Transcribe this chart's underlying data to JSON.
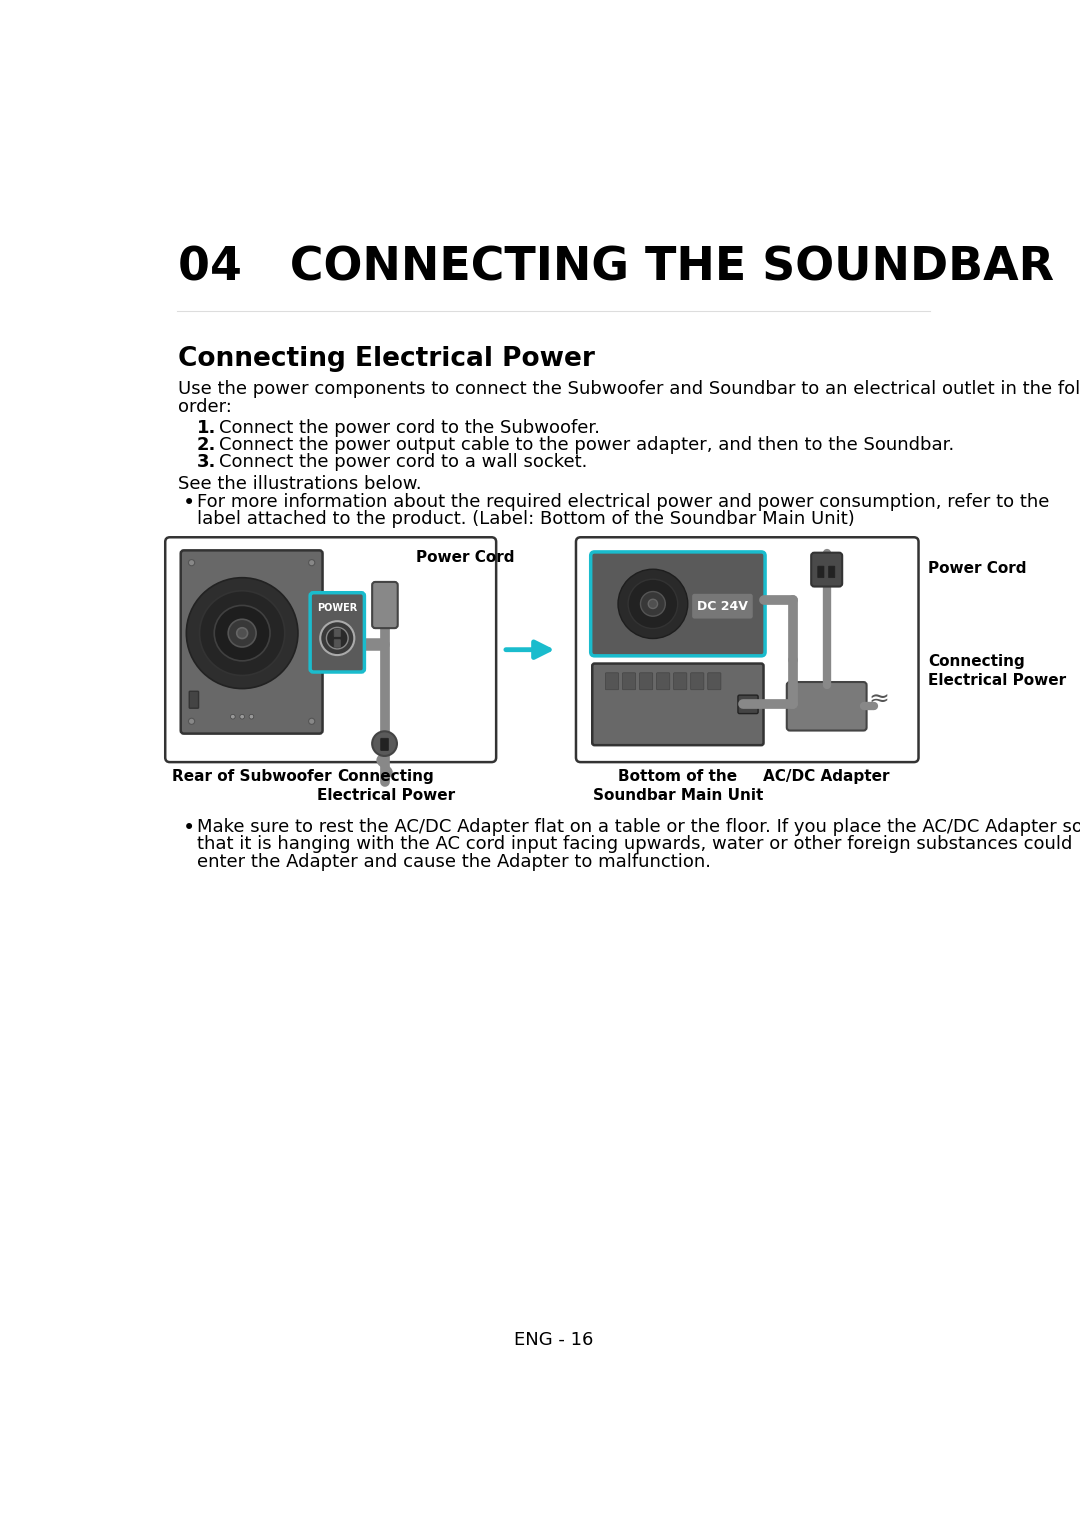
{
  "title": "04   CONNECTING THE SOUNDBAR",
  "section_title": "Connecting Electrical Power",
  "body_text_line1": "Use the power components to connect the Subwoofer and Soundbar to an electrical outlet in the following",
  "body_text_line2": "order:",
  "steps": [
    "Connect the power cord to the Subwoofer.",
    "Connect the power output cable to the power adapter, and then to the Soundbar.",
    "Connect the power cord to a wall socket."
  ],
  "see_text": "See the illustrations below.",
  "bullet1_line1": "For more information about the required electrical power and power consumption, refer to the",
  "bullet1_line2": "label attached to the product. (Label: Bottom of the Soundbar Main Unit)",
  "bullet2_line1": "Make sure to rest the AC/DC Adapter flat on a table or the floor. If you place the AC/DC Adapter so",
  "bullet2_line2": "that it is hanging with the AC cord input facing upwards, water or other foreign substances could",
  "bullet2_line3": "enter the Adapter and cause the Adapter to malfunction.",
  "footer": "ENG - 16",
  "bg_color": "#ffffff",
  "text_color": "#000000",
  "cyan_color": "#1abccd",
  "gray_dark": "#3a3a3a",
  "gray_mid": "#5a5a5a",
  "gray_light": "#808080",
  "gray_box": "#6a6a6a",
  "border_color": "#333333"
}
